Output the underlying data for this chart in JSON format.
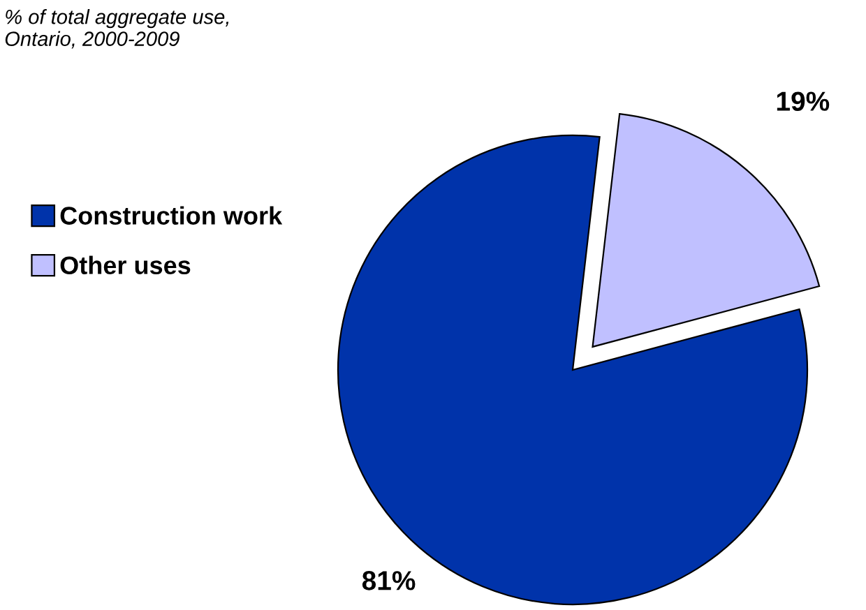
{
  "chart_data": {
    "type": "pie",
    "title": "% of total aggregate use,\nOntario, 2000-2009",
    "categories": [
      "Construction work",
      "Other uses"
    ],
    "values": [
      81,
      19
    ],
    "colors": [
      "#0033aa",
      "#c0c0ff"
    ],
    "value_labels": [
      "81%",
      "19%"
    ],
    "legend": "left"
  }
}
